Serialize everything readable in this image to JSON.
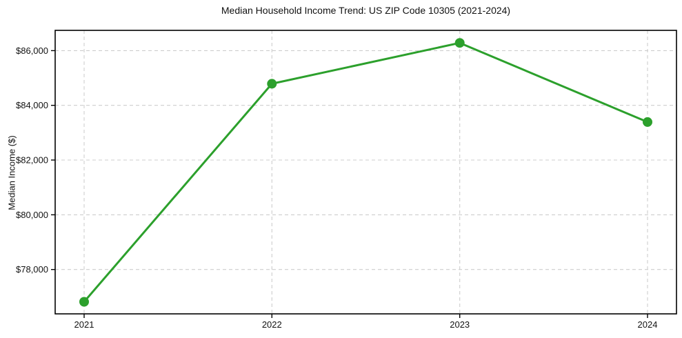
{
  "chart_data": {
    "type": "line",
    "title": "Median Household Income Trend: US ZIP Code 10305 (2021-2024)",
    "xlabel": "",
    "ylabel": "Median Income ($)",
    "categories": [
      "2021",
      "2022",
      "2023",
      "2024"
    ],
    "series": [
      {
        "name": "Median Household Income",
        "values": [
          76820,
          84790,
          86280,
          83390
        ],
        "color": "#2ca02c",
        "marker": "circle"
      }
    ],
    "y_ticks": [
      78000,
      80000,
      82000,
      84000,
      86000
    ],
    "y_tick_labels": [
      "$78,000",
      "$80,000",
      "$82,000",
      "$84,000",
      "$86,000"
    ],
    "ylim": [
      76380,
      86740
    ],
    "grid": true,
    "grid_style": "dashed",
    "grid_color": "#cdcdcd",
    "axis_color": "#000000",
    "background_color": "#ffffff",
    "legend_position": "none"
  }
}
